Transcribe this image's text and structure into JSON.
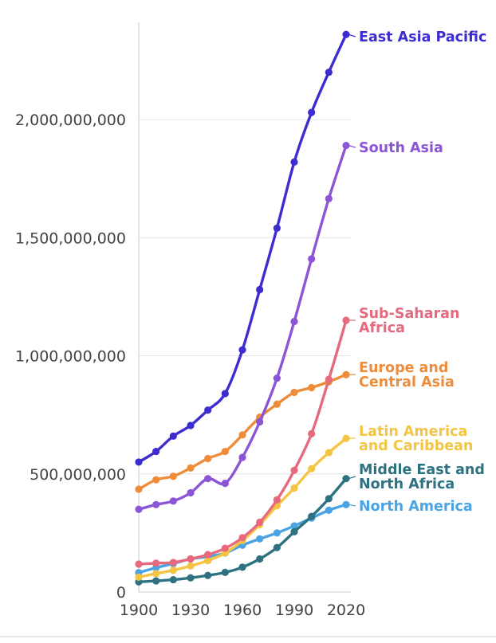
{
  "chart_data": {
    "type": "line",
    "title": "",
    "xlabel": "",
    "ylabel": "",
    "x": [
      1900,
      1910,
      1920,
      1930,
      1940,
      1950,
      1960,
      1970,
      1980,
      1990,
      2000,
      2010,
      2020
    ],
    "x_ticks": [
      "1900",
      "1930",
      "1960",
      "1990",
      "2020"
    ],
    "y_ticks": [
      "0",
      "500,000,000",
      "1,000,000,000",
      "1,500,000,000",
      "2,000,000,000"
    ],
    "xlim": [
      1900,
      2020
    ],
    "ylim": [
      0,
      2400000000
    ],
    "grid": "horizontal",
    "legend": "direct labels at line ends (right)",
    "series": [
      {
        "name": "East Asia Pacific",
        "label_lines": [
          "East Asia Pacific"
        ],
        "color": "#3d2ccf",
        "values": [
          550000000,
          595000000,
          660000000,
          705000000,
          770000000,
          840000000,
          1025000000,
          1280000000,
          1540000000,
          1820000000,
          2030000000,
          2200000000,
          2360000000
        ]
      },
      {
        "name": "South Asia",
        "label_lines": [
          "South Asia"
        ],
        "color": "#8b55d6",
        "values": [
          350000000,
          370000000,
          385000000,
          420000000,
          480000000,
          460000000,
          570000000,
          720000000,
          905000000,
          1145000000,
          1410000000,
          1665000000,
          1890000000
        ]
      },
      {
        "name": "Sub-Saharan Africa",
        "label_lines": [
          "Sub-Saharan",
          "Africa"
        ],
        "color": "#e6697e",
        "values": [
          118000000,
          122000000,
          125000000,
          140000000,
          158000000,
          185000000,
          230000000,
          295000000,
          390000000,
          515000000,
          670000000,
          900000000,
          1150000000
        ]
      },
      {
        "name": "Europe and Central Asia",
        "label_lines": [
          "Europe and",
          "Central Asia"
        ],
        "color": "#ee8c3a",
        "values": [
          435000000,
          475000000,
          490000000,
          525000000,
          565000000,
          595000000,
          665000000,
          740000000,
          795000000,
          845000000,
          865000000,
          890000000,
          920000000
        ]
      },
      {
        "name": "Latin America and Caribbean",
        "label_lines": [
          "Latin America",
          "and Caribbean"
        ],
        "color": "#f4c542",
        "values": [
          63000000,
          78000000,
          92000000,
          110000000,
          133000000,
          165000000,
          218000000,
          285000000,
          365000000,
          440000000,
          522000000,
          590000000,
          650000000
        ]
      },
      {
        "name": "Middle East and North Africa",
        "label_lines": [
          "Middle East and",
          "North Africa"
        ],
        "color": "#2e7282",
        "values": [
          43000000,
          47000000,
          52000000,
          60000000,
          70000000,
          83000000,
          105000000,
          140000000,
          188000000,
          255000000,
          320000000,
          395000000,
          480000000
        ]
      },
      {
        "name": "North America",
        "label_lines": [
          "North America"
        ],
        "color": "#4aa3e3",
        "values": [
          82000000,
          103000000,
          120000000,
          140000000,
          150000000,
          165000000,
          198000000,
          225000000,
          250000000,
          280000000,
          313000000,
          346000000,
          370000000
        ]
      }
    ]
  }
}
